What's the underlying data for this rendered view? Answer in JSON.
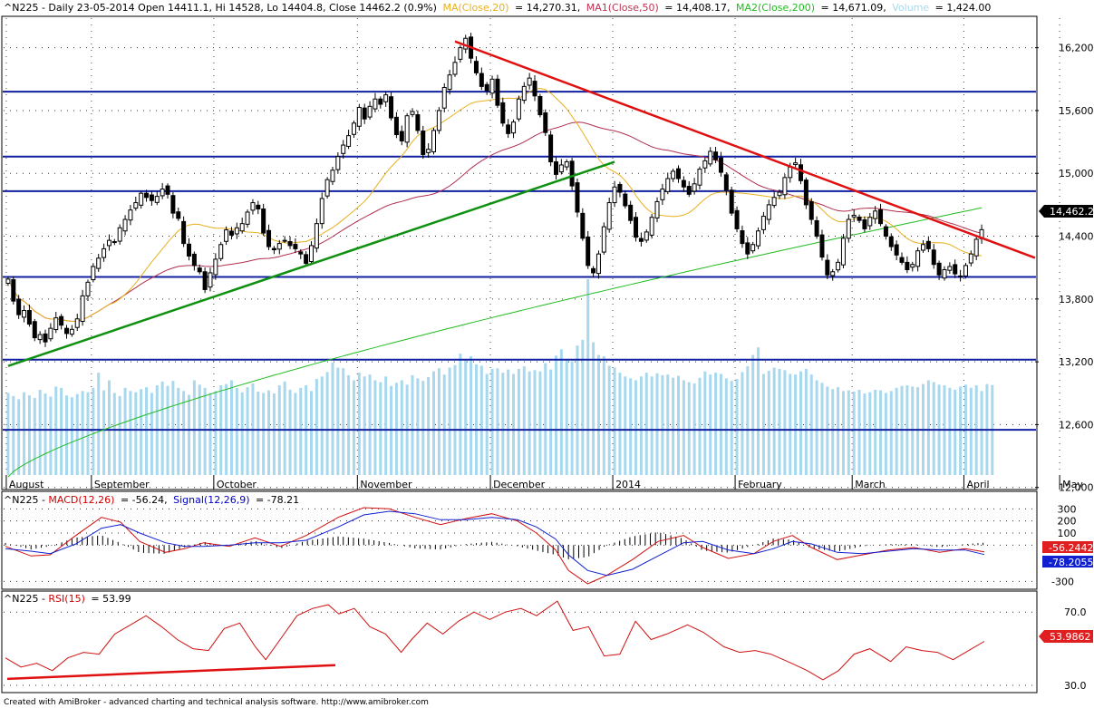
{
  "chart_data": [
    {
      "type": "candlestick",
      "symbol": "^N225",
      "header": {
        "prefix": "^N225 - Daily 23-05-2014 Open 14411.1, Hi 14528, Lo 14404.8, Close 14462.2 (0.9%)",
        "ma20": "MA(Close,20)",
        "ma20_value": "= 14,270.31,",
        "ma50": "MA1(Close,50)",
        "ma50_value": "= 14,408.17,",
        "ma200": "MA2(Close,200)",
        "ma200_value": "= 14,671.09,",
        "volume": "Volume",
        "volume_value": "= 1,424.00"
      },
      "x_labels": [
        "August",
        "September",
        "October",
        "November",
        "December",
        "2014",
        "February",
        "March",
        "April",
        "May"
      ],
      "y_ticks": [
        16200,
        15600,
        15000,
        14400,
        13800,
        13200,
        12600,
        12000
      ],
      "y_tick_labels": [
        "16,200",
        "15,600",
        "15,000",
        "14,400",
        "13,800",
        "13,200",
        "12,600",
        "12,000"
      ],
      "ylim": [
        11980,
        16500
      ],
      "last_close": 14462.2,
      "last_close_label": "14,462.2",
      "horizontal_lines": [
        15780,
        15160,
        14830,
        14010,
        13220,
        12550
      ],
      "trendlines": [
        {
          "color": "red",
          "from": [
            84,
            16260
          ],
          "to": [
            180,
            14440
          ]
        },
        {
          "color": "green",
          "from": [
            0,
            13160
          ],
          "to": [
            114,
            15110
          ]
        }
      ],
      "closes": [
        13990,
        13780,
        13650,
        13690,
        13560,
        13430,
        13460,
        13390,
        13520,
        13620,
        13550,
        13470,
        13510,
        13610,
        13830,
        13960,
        14110,
        14190,
        14280,
        14360,
        14340,
        14480,
        14560,
        14650,
        14720,
        14810,
        14770,
        14740,
        14780,
        14850,
        14800,
        14620,
        14570,
        14330,
        14210,
        14120,
        14060,
        13890,
        14050,
        14180,
        14320,
        14460,
        14410,
        14480,
        14520,
        14630,
        14720,
        14660,
        14430,
        14300,
        14270,
        14330,
        14360,
        14310,
        14280,
        14230,
        14140,
        14310,
        14520,
        14760,
        14940,
        15030,
        15160,
        15270,
        15360,
        15480,
        15630,
        15520,
        15640,
        15710,
        15660,
        15750,
        15530,
        15370,
        15310,
        15550,
        15590,
        15410,
        15180,
        15230,
        15410,
        15600,
        15820,
        15940,
        16060,
        16200,
        16290,
        16100,
        15960,
        15830,
        15790,
        15900,
        15650,
        15480,
        15380,
        15490,
        15710,
        15830,
        15910,
        15740,
        15560,
        15390,
        15110,
        14990,
        15080,
        15110,
        14880,
        14630,
        14380,
        14120,
        14050,
        14230,
        14490,
        14720,
        14870,
        14820,
        14690,
        14550,
        14390,
        14350,
        14440,
        14580,
        14730,
        14850,
        14950,
        15020,
        14950,
        14870,
        14800,
        14900,
        15040,
        15120,
        15210,
        15130,
        15010,
        14840,
        14620,
        14470,
        14330,
        14230,
        14320,
        14450,
        14590,
        14700,
        14770,
        14820,
        14960,
        15060,
        15100,
        14930,
        14700,
        14560,
        14400,
        14200,
        14030,
        14060,
        14150,
        14380,
        14560,
        14600,
        14550,
        14470,
        14580,
        14640,
        14520,
        14400,
        14300,
        14220,
        14150,
        14080,
        14130,
        14260,
        14320,
        14280,
        14130,
        14030,
        14080,
        14110,
        14040,
        14020,
        14120,
        14230,
        14370,
        14462.2
      ],
      "volumes": [
        1300,
        1250,
        1200,
        1310,
        1260,
        1220,
        1350,
        1290,
        1240,
        1400,
        1380,
        1260,
        1230,
        1280,
        1330,
        1310,
        1380,
        1620,
        1340,
        1500,
        1300,
        1250,
        1380,
        1330,
        1310,
        1360,
        1390,
        1300,
        1420,
        1480,
        1410,
        1490,
        1380,
        1330,
        1270,
        1500,
        1430,
        1380,
        1300,
        1330,
        1420,
        1440,
        1500,
        1380,
        1310,
        1390,
        1450,
        1320,
        1300,
        1340,
        1290,
        1420,
        1480,
        1350,
        1300,
        1380,
        1420,
        1330,
        1520,
        1560,
        1630,
        1780,
        1700,
        1690,
        1580,
        1500,
        1620,
        1560,
        1590,
        1500,
        1470,
        1560,
        1410,
        1460,
        1500,
        1430,
        1580,
        1530,
        1490,
        1550,
        1640,
        1690,
        1590,
        1700,
        1740,
        1920,
        1830,
        1880,
        1750,
        1730,
        1600,
        1680,
        1690,
        1620,
        1670,
        1600,
        1680,
        1720,
        1640,
        1660,
        1640,
        1770,
        1670,
        1890,
        1990,
        1830,
        1800,
        2050,
        2140,
        3100,
        2100,
        1900,
        1880,
        1730,
        1700,
        1620,
        1560,
        1530,
        1500,
        1560,
        1620,
        1560,
        1610,
        1580,
        1590,
        1540,
        1570,
        1500,
        1470,
        1450,
        1540,
        1640,
        1590,
        1620,
        1600,
        1530,
        1490,
        1520,
        1630,
        1720,
        1900,
        2020,
        1600,
        1650,
        1700,
        1680,
        1660,
        1600,
        1590,
        1640,
        1680,
        1590,
        1500,
        1460,
        1400,
        1360,
        1390,
        1330,
        1340,
        1320,
        1350,
        1290,
        1310,
        1350,
        1340,
        1300,
        1330,
        1380,
        1410,
        1420,
        1400,
        1390,
        1440,
        1500,
        1470,
        1430,
        1420,
        1380,
        1350,
        1400,
        1430,
        1380,
        1420,
        1330,
        1440,
        1424
      ]
    },
    {
      "type": "line",
      "title_prefix": "^N225 - ",
      "macd_label": "MACD(12,26)",
      "macd_value": "= -56.24,",
      "signal_label": "Signal(12,26,9)",
      "signal_value": "= -78.21",
      "y_tick_labels": [
        "300",
        "200",
        "100",
        "0",
        "-300"
      ],
      "ylim": [
        -350,
        400
      ],
      "last_macd_label": "-56.2442",
      "last_signal_label": "-78.2055",
      "series": [
        {
          "name": "MACD(12,26)",
          "points": [
            [
              0,
              -10
            ],
            [
              8,
              -90
            ],
            [
              14,
              -80
            ],
            [
              22,
              80
            ],
            [
              30,
              230
            ],
            [
              36,
              190
            ],
            [
              42,
              30
            ],
            [
              50,
              -60
            ],
            [
              56,
              -30
            ],
            [
              62,
              20
            ],
            [
              70,
              -10
            ],
            [
              78,
              60
            ],
            [
              86,
              -10
            ],
            [
              94,
              80
            ],
            [
              104,
              230
            ],
            [
              112,
              310
            ],
            [
              120,
              300
            ],
            [
              128,
              230
            ],
            [
              136,
              170
            ],
            [
              144,
              220
            ],
            [
              152,
              260
            ],
            [
              160,
              200
            ],
            [
              166,
              100
            ],
            [
              172,
              -40
            ],
            [
              176,
              -210
            ],
            [
              182,
              -320
            ],
            [
              188,
              -250
            ],
            [
              196,
              -120
            ],
            [
              204,
              30
            ],
            [
              212,
              80
            ],
            [
              218,
              -20
            ],
            [
              226,
              -110
            ],
            [
              234,
              -70
            ],
            [
              240,
              30
            ],
            [
              246,
              80
            ],
            [
              252,
              -20
            ],
            [
              260,
              -120
            ],
            [
              268,
              -80
            ],
            [
              276,
              -40
            ],
            [
              284,
              -20
            ],
            [
              292,
              -60
            ],
            [
              300,
              -30
            ],
            [
              306,
              -56
            ]
          ]
        },
        {
          "name": "Signal(12,26,9)",
          "points": [
            [
              0,
              -30
            ],
            [
              8,
              -50
            ],
            [
              14,
              -70
            ],
            [
              22,
              10
            ],
            [
              30,
              140
            ],
            [
              36,
              170
            ],
            [
              42,
              100
            ],
            [
              50,
              20
            ],
            [
              56,
              -10
            ],
            [
              62,
              -10
            ],
            [
              70,
              0
            ],
            [
              78,
              20
            ],
            [
              86,
              20
            ],
            [
              94,
              40
            ],
            [
              104,
              150
            ],
            [
              112,
              250
            ],
            [
              120,
              280
            ],
            [
              128,
              260
            ],
            [
              136,
              210
            ],
            [
              144,
              210
            ],
            [
              152,
              230
            ],
            [
              160,
              210
            ],
            [
              166,
              150
            ],
            [
              172,
              50
            ],
            [
              176,
              -80
            ],
            [
              182,
              -210
            ],
            [
              188,
              -250
            ],
            [
              196,
              -200
            ],
            [
              204,
              -90
            ],
            [
              212,
              20
            ],
            [
              218,
              30
            ],
            [
              226,
              -40
            ],
            [
              234,
              -70
            ],
            [
              240,
              -30
            ],
            [
              246,
              30
            ],
            [
              252,
              10
            ],
            [
              260,
              -60
            ],
            [
              268,
              -70
            ],
            [
              276,
              -50
            ],
            [
              284,
              -30
            ],
            [
              292,
              -40
            ],
            [
              300,
              -40
            ],
            [
              306,
              -78
            ]
          ]
        }
      ]
    },
    {
      "type": "line",
      "title_prefix": "^N225 - ",
      "rsi_label": "RSI(15)",
      "rsi_value": "= 53.99",
      "y_tick_labels": [
        "70.0",
        "30.0"
      ],
      "ylim": [
        27,
        80
      ],
      "last_rsi_label": "53.9862",
      "series": [
        {
          "name": "RSI(15)",
          "points": [
            [
              0,
              45
            ],
            [
              6,
              40
            ],
            [
              12,
              42
            ],
            [
              18,
              38
            ],
            [
              24,
              45
            ],
            [
              30,
              48
            ],
            [
              36,
              47
            ],
            [
              42,
              58
            ],
            [
              48,
              63
            ],
            [
              54,
              68
            ],
            [
              60,
              62
            ],
            [
              66,
              55
            ],
            [
              72,
              50
            ],
            [
              78,
              49
            ],
            [
              84,
              61
            ],
            [
              90,
              64
            ],
            [
              96,
              51
            ],
            [
              100,
              44
            ],
            [
              106,
              56
            ],
            [
              112,
              68
            ],
            [
              118,
              72
            ],
            [
              124,
              74
            ],
            [
              128,
              69
            ],
            [
              134,
              72
            ],
            [
              140,
              62
            ],
            [
              146,
              58
            ],
            [
              152,
              48
            ],
            [
              156,
              55
            ],
            [
              162,
              64
            ],
            [
              168,
              58
            ],
            [
              174,
              65
            ],
            [
              180,
              70
            ],
            [
              186,
              66
            ],
            [
              192,
              70
            ],
            [
              198,
              72
            ],
            [
              204,
              68
            ],
            [
              212,
              76
            ],
            [
              218,
              60
            ],
            [
              224,
              62
            ],
            [
              230,
              46
            ],
            [
              236,
              47
            ],
            [
              242,
              65
            ],
            [
              248,
              55
            ],
            [
              254,
              58
            ],
            [
              262,
              63
            ],
            [
              268,
              59
            ],
            [
              276,
              51
            ],
            [
              282,
              48
            ],
            [
              288,
              49
            ],
            [
              294,
              47
            ],
            [
              302,
              42
            ],
            [
              308,
              38
            ],
            [
              314,
              33
            ],
            [
              320,
              38
            ],
            [
              326,
              47
            ],
            [
              332,
              50
            ],
            [
              340,
              43
            ],
            [
              346,
              51
            ],
            [
              352,
              49
            ],
            [
              358,
              48
            ],
            [
              364,
              44
            ],
            [
              370,
              49
            ],
            [
              376,
              54
            ]
          ]
        }
      ]
    }
  ],
  "footer": {
    "credit": "Created with AmiBroker - advanced charting and technical analysis software. http://www.amibroker.com"
  }
}
